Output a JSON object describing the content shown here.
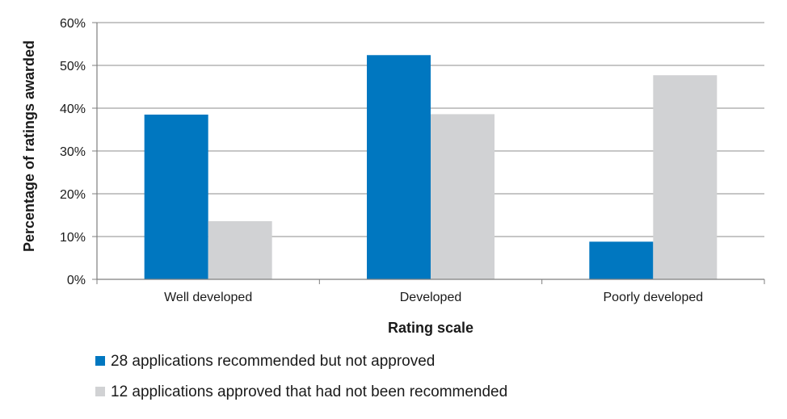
{
  "chart_data": {
    "type": "bar",
    "title": "",
    "xlabel": "Rating scale",
    "ylabel": "Percentage of ratings awarded",
    "categories": [
      "Well developed",
      "Developed",
      "Poorly developed"
    ],
    "series": [
      {
        "name": "28 applications recommended but not approved",
        "color": "#0077c0",
        "values": [
          38.5,
          52.4,
          8.8
        ]
      },
      {
        "name": "12 applications approved that had not been recommended",
        "color": "#d1d2d4",
        "values": [
          13.6,
          38.6,
          47.7
        ]
      }
    ],
    "ylim": [
      0,
      60
    ],
    "yticks": [
      0,
      10,
      20,
      30,
      40,
      50,
      60
    ],
    "ytick_labels": [
      "0%",
      "10%",
      "20%",
      "30%",
      "40%",
      "50%",
      "60%"
    ],
    "grid": true,
    "legend_position": "bottom-left"
  }
}
